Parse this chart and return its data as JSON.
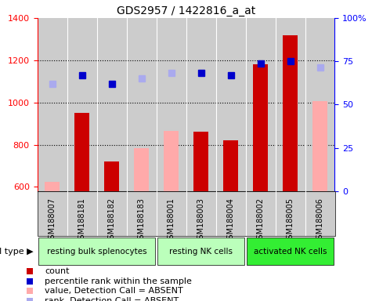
{
  "title": "GDS2957 / 1422816_a_at",
  "samples": [
    "GSM188007",
    "GSM188181",
    "GSM188182",
    "GSM188183",
    "GSM188001",
    "GSM188003",
    "GSM188004",
    "GSM188002",
    "GSM188005",
    "GSM188006"
  ],
  "count_values": [
    null,
    950,
    720,
    null,
    null,
    860,
    820,
    1180,
    1320,
    null
  ],
  "absent_bar_values": [
    625,
    null,
    null,
    785,
    865,
    null,
    null,
    null,
    null,
    1005
  ],
  "percentile_values": [
    null,
    1130,
    1090,
    null,
    null,
    1140,
    1130,
    1185,
    1195,
    null
  ],
  "absent_rank_values": [
    1090,
    null,
    null,
    1115,
    1140,
    null,
    null,
    null,
    null,
    1165
  ],
  "cell_groups": [
    {
      "label": "resting bulk splenocytes",
      "start": 0,
      "end": 3,
      "color": "#bbffbb"
    },
    {
      "label": "resting NK cells",
      "start": 4,
      "end": 6,
      "color": "#bbffbb"
    },
    {
      "label": "activated NK cells",
      "start": 7,
      "end": 9,
      "color": "#33ee33"
    }
  ],
  "ylim_left": [
    580,
    1400
  ],
  "ylim_right": [
    0,
    100
  ],
  "right_ticks": [
    0,
    25,
    50,
    75,
    100
  ],
  "right_tick_labels": [
    "0",
    "25",
    "50",
    "75",
    "100%"
  ],
  "left_ticks": [
    600,
    800,
    1000,
    1200,
    1400
  ],
  "dotted_lines": [
    800,
    1000,
    1200
  ],
  "bar_width": 0.5,
  "count_color": "#cc0000",
  "absent_bar_color": "#ffaaaa",
  "percentile_color": "#0000cc",
  "absent_rank_color": "#aaaaee",
  "bg_color": "#cccccc",
  "label_bg_color": "#cccccc",
  "figsize": [
    4.75,
    3.84
  ],
  "dpi": 100
}
